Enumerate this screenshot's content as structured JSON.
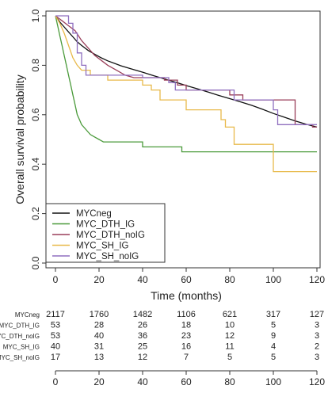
{
  "chart_data": {
    "type": "line",
    "title": "",
    "xlabel": "Time (months)",
    "ylabel": "Overall survival probability",
    "xlim": [
      0,
      120
    ],
    "ylim": [
      0,
      1
    ],
    "x_ticks": [
      0,
      20,
      40,
      60,
      80,
      100,
      120
    ],
    "y_ticks": [
      0.0,
      0.2,
      0.4,
      0.6,
      0.8,
      1.0
    ],
    "y_tick_labels": [
      "0.0",
      "0.2",
      "0.4",
      "0.6",
      "0.8",
      "1.0"
    ],
    "grid": false,
    "legend_position": "bottom-left",
    "series": [
      {
        "name": "MYCneg",
        "color": "#111111",
        "points": [
          [
            0,
            1.0
          ],
          [
            2,
            0.975
          ],
          [
            4,
            0.955
          ],
          [
            6,
            0.935
          ],
          [
            8,
            0.915
          ],
          [
            10,
            0.895
          ],
          [
            12,
            0.88
          ],
          [
            15,
            0.86
          ],
          [
            18,
            0.845
          ],
          [
            21,
            0.83
          ],
          [
            24,
            0.818
          ],
          [
            27,
            0.808
          ],
          [
            30,
            0.798
          ],
          [
            35,
            0.785
          ],
          [
            40,
            0.772
          ],
          [
            45,
            0.758
          ],
          [
            50,
            0.745
          ],
          [
            55,
            0.732
          ],
          [
            60,
            0.718
          ],
          [
            65,
            0.705
          ],
          [
            70,
            0.692
          ],
          [
            75,
            0.678
          ],
          [
            80,
            0.665
          ],
          [
            85,
            0.652
          ],
          [
            90,
            0.638
          ],
          [
            95,
            0.622
          ],
          [
            100,
            0.605
          ],
          [
            105,
            0.59
          ],
          [
            110,
            0.575
          ],
          [
            115,
            0.562
          ],
          [
            120,
            0.55
          ]
        ]
      },
      {
        "name": "MYC_DTH_IG",
        "color": "#4a9a3a",
        "points": [
          [
            0,
            1.0
          ],
          [
            1,
            0.96
          ],
          [
            2,
            0.92
          ],
          [
            3,
            0.88
          ],
          [
            4,
            0.84
          ],
          [
            5,
            0.8
          ],
          [
            6,
            0.76
          ],
          [
            7,
            0.72
          ],
          [
            8,
            0.68
          ],
          [
            9,
            0.64
          ],
          [
            10,
            0.6
          ],
          [
            11,
            0.58
          ],
          [
            12,
            0.56
          ],
          [
            14,
            0.54
          ],
          [
            16,
            0.52
          ],
          [
            18,
            0.51
          ],
          [
            20,
            0.5
          ],
          [
            22,
            0.49
          ],
          [
            30,
            0.49
          ],
          [
            40,
            0.49
          ],
          [
            40,
            0.47
          ],
          [
            58,
            0.47
          ],
          [
            58,
            0.45
          ],
          [
            120,
            0.45
          ]
        ]
      },
      {
        "name": "MYC_DTH_noIG",
        "color": "#9a3f5a",
        "points": [
          [
            0,
            1.0
          ],
          [
            3,
            0.98
          ],
          [
            6,
            0.96
          ],
          [
            9,
            0.94
          ],
          [
            12,
            0.9
          ],
          [
            15,
            0.87
          ],
          [
            18,
            0.84
          ],
          [
            21,
            0.82
          ],
          [
            24,
            0.8
          ],
          [
            28,
            0.78
          ],
          [
            32,
            0.76
          ],
          [
            36,
            0.75
          ],
          [
            50,
            0.75
          ],
          [
            50,
            0.74
          ],
          [
            56,
            0.74
          ],
          [
            56,
            0.72
          ],
          [
            60,
            0.72
          ],
          [
            60,
            0.7
          ],
          [
            80,
            0.7
          ],
          [
            80,
            0.68
          ],
          [
            86,
            0.68
          ],
          [
            86,
            0.66
          ],
          [
            110,
            0.66
          ],
          [
            110,
            0.56
          ],
          [
            118,
            0.56
          ],
          [
            118,
            0.55
          ],
          [
            120,
            0.55
          ]
        ]
      },
      {
        "name": "MYC_SH_IG",
        "color": "#e8b94a",
        "points": [
          [
            0,
            1.0
          ],
          [
            2,
            0.97
          ],
          [
            4,
            0.93
          ],
          [
            6,
            0.88
          ],
          [
            8,
            0.83
          ],
          [
            10,
            0.8
          ],
          [
            12,
            0.78
          ],
          [
            16,
            0.78
          ],
          [
            16,
            0.76
          ],
          [
            24,
            0.76
          ],
          [
            24,
            0.74
          ],
          [
            40,
            0.74
          ],
          [
            40,
            0.72
          ],
          [
            44,
            0.72
          ],
          [
            44,
            0.7
          ],
          [
            48,
            0.7
          ],
          [
            48,
            0.66
          ],
          [
            60,
            0.66
          ],
          [
            60,
            0.62
          ],
          [
            76,
            0.62
          ],
          [
            76,
            0.58
          ],
          [
            78,
            0.58
          ],
          [
            78,
            0.55
          ],
          [
            82,
            0.55
          ],
          [
            82,
            0.48
          ],
          [
            100,
            0.48
          ],
          [
            100,
            0.37
          ],
          [
            120,
            0.37
          ]
        ]
      },
      {
        "name": "MYC_SH_noIG",
        "color": "#8f6fbf",
        "points": [
          [
            0,
            1.0
          ],
          [
            6,
            1.0
          ],
          [
            6,
            0.97
          ],
          [
            8,
            0.97
          ],
          [
            8,
            0.93
          ],
          [
            10,
            0.93
          ],
          [
            10,
            0.85
          ],
          [
            12,
            0.85
          ],
          [
            12,
            0.8
          ],
          [
            14,
            0.8
          ],
          [
            14,
            0.76
          ],
          [
            40,
            0.76
          ],
          [
            40,
            0.75
          ],
          [
            52,
            0.75
          ],
          [
            52,
            0.73
          ],
          [
            55,
            0.73
          ],
          [
            55,
            0.7
          ],
          [
            82,
            0.7
          ],
          [
            82,
            0.66
          ],
          [
            100,
            0.66
          ],
          [
            100,
            0.62
          ],
          [
            102,
            0.62
          ],
          [
            102,
            0.56
          ],
          [
            120,
            0.56
          ]
        ]
      }
    ],
    "risk_table": {
      "times": [
        0,
        20,
        40,
        60,
        80,
        100,
        120
      ],
      "rows": [
        {
          "name": "MYCneg",
          "values": [
            2117,
            1760,
            1482,
            1106,
            621,
            317,
            127
          ]
        },
        {
          "name": "MYC_DTH_IG",
          "values": [
            53,
            28,
            26,
            18,
            10,
            5,
            3
          ]
        },
        {
          "name": "MYC_DTH_noIG",
          "values": [
            53,
            40,
            36,
            23,
            12,
            9,
            3
          ]
        },
        {
          "name": "MYC_SH_IG",
          "values": [
            40,
            31,
            25,
            16,
            11,
            4,
            2
          ]
        },
        {
          "name": "MYC_SH_noIG",
          "values": [
            17,
            13,
            12,
            7,
            5,
            5,
            3
          ]
        }
      ]
    }
  }
}
